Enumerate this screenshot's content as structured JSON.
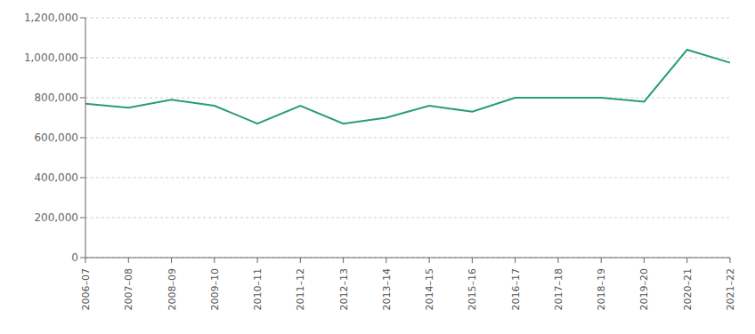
{
  "chart_data": {
    "type": "line",
    "categories": [
      "2006–07",
      "2007–08",
      "2008–09",
      "2009–10",
      "2010–11",
      "2011–12",
      "2012–13",
      "2013–14",
      "2014–15",
      "2015–16",
      "2016–17",
      "2017–18",
      "2018–19",
      "2019–20",
      "2020–21",
      "2021–22"
    ],
    "values": [
      770000,
      750000,
      790000,
      760000,
      670000,
      760000,
      670000,
      700000,
      760000,
      730000,
      800000,
      800000,
      800000,
      780000,
      1040000,
      975000
    ],
    "color": "#2a9d72",
    "ylim": [
      0,
      1200000
    ],
    "yticks": [
      0,
      {
        "value": 200000,
        "label": "200,000"
      },
      {
        "value": 400000,
        "label": "400,000"
      },
      {
        "value": 600000,
        "label": "600,000"
      },
      {
        "value": 800000,
        "label": "800,000"
      },
      {
        "value": 1000000,
        "label": "1,000,000"
      },
      {
        "value": 1200000,
        "label": "1,200,000"
      }
    ],
    "grid": true
  }
}
